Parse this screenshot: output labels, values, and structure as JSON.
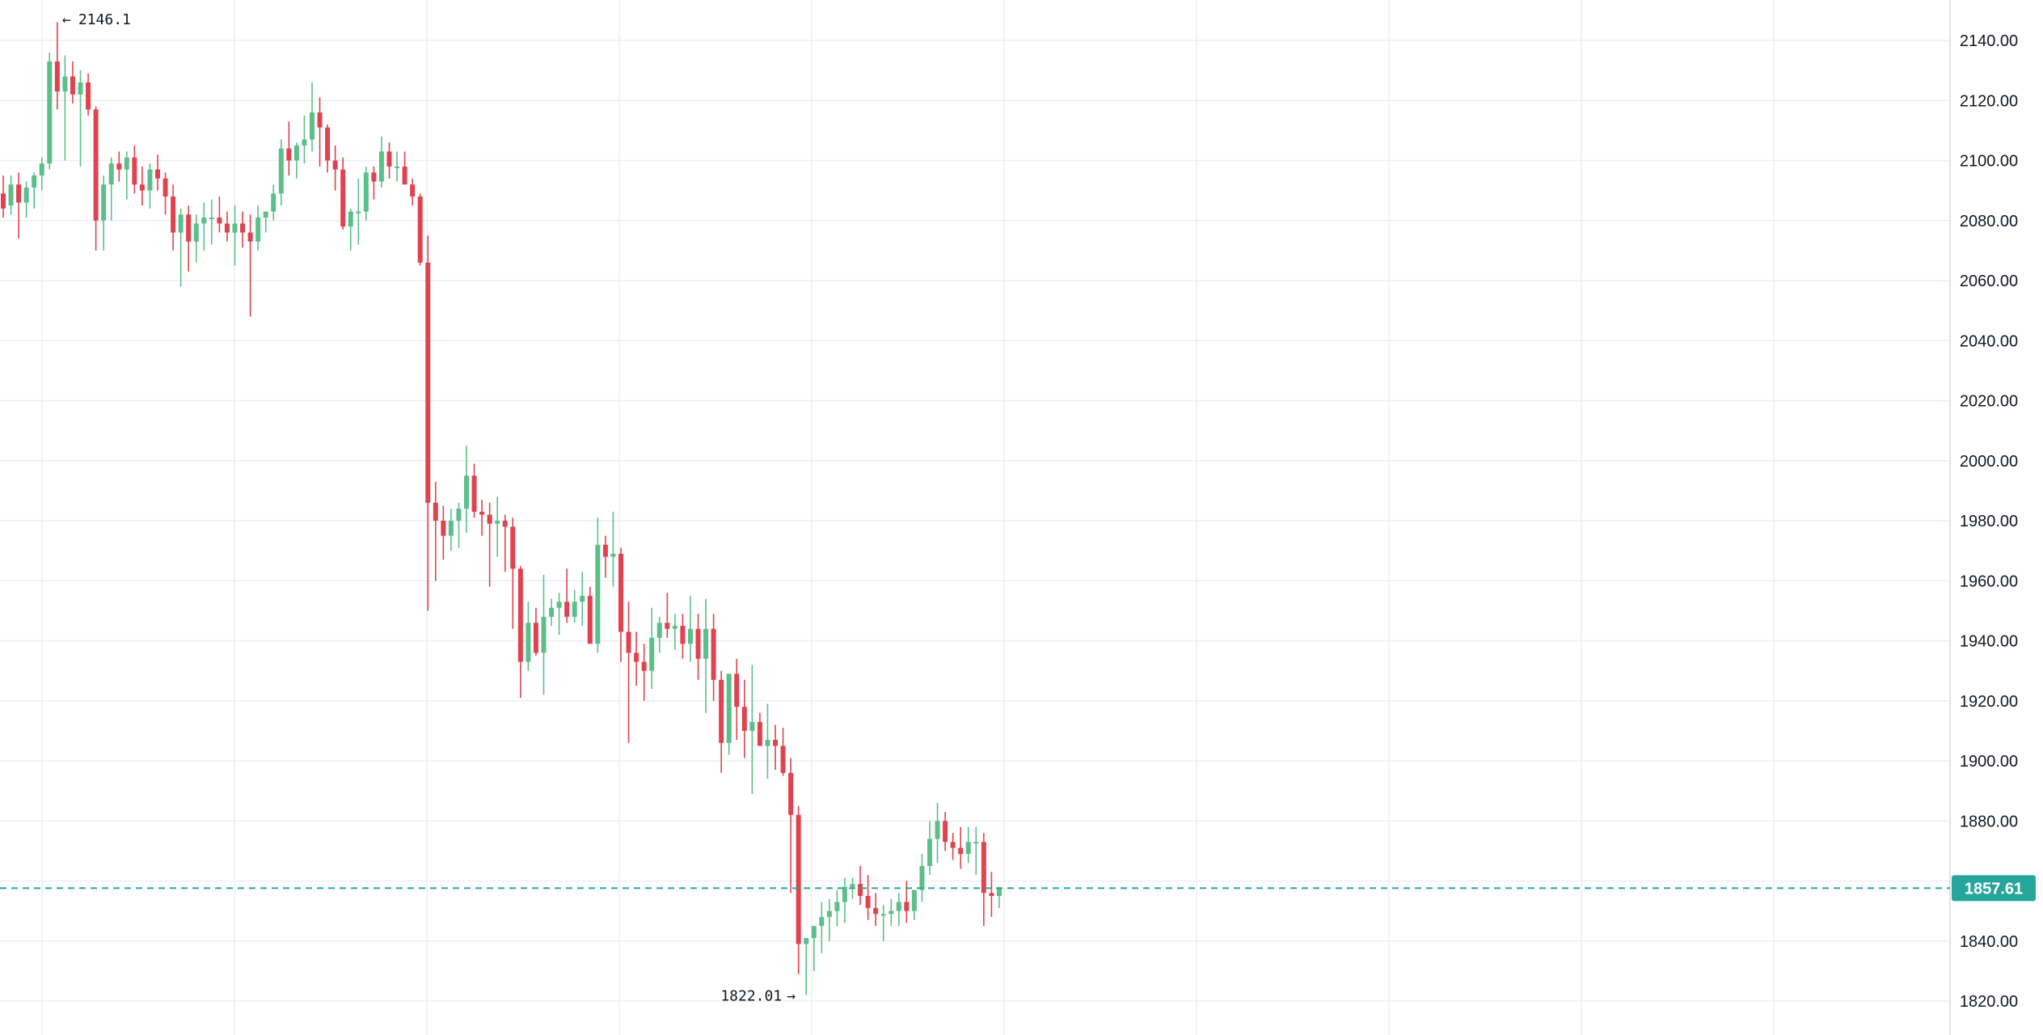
{
  "chart_data": {
    "type": "candlestick",
    "y_ticks": [
      "2140.00",
      "2120.00",
      "2100.00",
      "2080.00",
      "2060.00",
      "2040.00",
      "2020.00",
      "2000.00",
      "1980.00",
      "1960.00",
      "1940.00",
      "1920.00",
      "1900.00",
      "1880.00",
      "1860.00",
      "1840.00",
      "1820.00"
    ],
    "ylim": [
      1809,
      2153
    ],
    "grid": true,
    "last_price": 1857.61,
    "last_price_label": "1857.61",
    "high_label": "2146.1",
    "low_label": "1822.01",
    "colors": {
      "up": "#26a69a",
      "down": "#ef5350",
      "up_body": "#5cbf8a",
      "down_body": "#e0434f",
      "grid": "#eceff2",
      "axis_text": "#131722",
      "price_line": "#26a69a"
    },
    "candles": [
      [
        2089,
        2095,
        2081,
        2084
      ],
      [
        2085,
        2095,
        2082,
        2092
      ],
      [
        2092,
        2096,
        2074,
        2086
      ],
      [
        2086,
        2093,
        2081,
        2091
      ],
      [
        2091,
        2096,
        2084,
        2095
      ],
      [
        2095,
        2101,
        2090,
        2099
      ],
      [
        2099,
        2136,
        2097,
        2133
      ],
      [
        2133,
        2146.1,
        2117,
        2123
      ],
      [
        2123,
        2135,
        2100,
        2128
      ],
      [
        2128,
        2133,
        2119,
        2122
      ],
      [
        2122,
        2130,
        2098,
        2126
      ],
      [
        2126,
        2129,
        2115,
        2117
      ],
      [
        2117,
        2118,
        2070,
        2080
      ],
      [
        2080,
        2095,
        2070,
        2092
      ],
      [
        2092,
        2101,
        2080,
        2099
      ],
      [
        2099,
        2103,
        2093,
        2097
      ],
      [
        2097,
        2103,
        2087,
        2101
      ],
      [
        2101,
        2105,
        2089,
        2092
      ],
      [
        2092,
        2098,
        2085,
        2090
      ],
      [
        2090,
        2099,
        2084,
        2097
      ],
      [
        2097,
        2102,
        2090,
        2094
      ],
      [
        2094,
        2096,
        2082,
        2088
      ],
      [
        2088,
        2092,
        2070,
        2076
      ],
      [
        2076,
        2084,
        2058,
        2082
      ],
      [
        2082,
        2085,
        2063,
        2073
      ],
      [
        2073,
        2082,
        2066,
        2079
      ],
      [
        2079,
        2086,
        2070,
        2081
      ],
      [
        2081,
        2087,
        2072,
        2081
      ],
      [
        2081,
        2088,
        2076,
        2079
      ],
      [
        2079,
        2083,
        2073,
        2076
      ],
      [
        2076,
        2085,
        2065,
        2079
      ],
      [
        2079,
        2083,
        2071,
        2076
      ],
      [
        2076,
        2082,
        2048,
        2073
      ],
      [
        2073,
        2085,
        2070,
        2081
      ],
      [
        2081,
        2083,
        2076,
        2083
      ],
      [
        2083,
        2092,
        2080,
        2089
      ],
      [
        2089,
        2107,
        2085,
        2104
      ],
      [
        2104,
        2113,
        2095,
        2100
      ],
      [
        2100,
        2106,
        2094,
        2105
      ],
      [
        2105,
        2115,
        2099,
        2107
      ],
      [
        2107,
        2126,
        2103,
        2116
      ],
      [
        2116,
        2121,
        2098,
        2111
      ],
      [
        2111,
        2112,
        2096,
        2100
      ],
      [
        2100,
        2105,
        2090,
        2097
      ],
      [
        2097,
        2101,
        2077,
        2078
      ],
      [
        2078,
        2084,
        2070,
        2083
      ],
      [
        2083,
        2094,
        2072,
        2083
      ],
      [
        2083,
        2098,
        2080,
        2096
      ],
      [
        2096,
        2098,
        2087,
        2093
      ],
      [
        2093,
        2108,
        2091,
        2103
      ],
      [
        2103,
        2106,
        2094,
        2098
      ],
      [
        2098,
        2103,
        2093,
        2098
      ],
      [
        2098,
        2103,
        2092,
        2092
      ],
      [
        2092,
        2094,
        2085,
        2088
      ],
      [
        2088,
        2089,
        2065,
        2066
      ],
      [
        2066,
        2075,
        1950,
        1986
      ],
      [
        1986,
        1993,
        1960,
        1980
      ],
      [
        1980,
        1985,
        1967,
        1975
      ],
      [
        1975,
        1984,
        1970,
        1980
      ],
      [
        1980,
        1986,
        1971,
        1984
      ],
      [
        1984,
        2005,
        1976,
        1995
      ],
      [
        1995,
        1999,
        1981,
        1983
      ],
      [
        1983,
        1987,
        1975,
        1982
      ],
      [
        1982,
        1986,
        1958,
        1979
      ],
      [
        1979,
        1988,
        1968,
        1980
      ],
      [
        1980,
        1982,
        1963,
        1978
      ],
      [
        1978,
        1981,
        1944,
        1964
      ],
      [
        1964,
        1965,
        1921,
        1933
      ],
      [
        1933,
        1953,
        1930,
        1946
      ],
      [
        1946,
        1951,
        1935,
        1936
      ],
      [
        1936,
        1962,
        1922,
        1948
      ],
      [
        1948,
        1954,
        1945,
        1951
      ],
      [
        1951,
        1956,
        1942,
        1953
      ],
      [
        1953,
        1964,
        1946,
        1948
      ],
      [
        1948,
        1957,
        1946,
        1953
      ],
      [
        1953,
        1963,
        1945,
        1955
      ],
      [
        1955,
        1958,
        1940,
        1939
      ],
      [
        1939,
        1981,
        1936,
        1972
      ],
      [
        1972,
        1975,
        1961,
        1968
      ],
      [
        1968,
        1983,
        1958,
        1969
      ],
      [
        1969,
        1971,
        1933,
        1943
      ],
      [
        1943,
        1953,
        1906,
        1936
      ],
      [
        1936,
        1943,
        1925,
        1933
      ],
      [
        1933,
        1939,
        1920,
        1930
      ],
      [
        1930,
        1951,
        1924,
        1941
      ],
      [
        1941,
        1948,
        1936,
        1946
      ],
      [
        1946,
        1956,
        1941,
        1944
      ],
      [
        1944,
        1949,
        1937,
        1945
      ],
      [
        1945,
        1949,
        1934,
        1939
      ],
      [
        1939,
        1955,
        1933,
        1944
      ],
      [
        1944,
        1949,
        1927,
        1934
      ],
      [
        1934,
        1954,
        1916,
        1944
      ],
      [
        1944,
        1949,
        1920,
        1927
      ],
      [
        1927,
        1930,
        1896,
        1906
      ],
      [
        1906,
        1929,
        1902,
        1929
      ],
      [
        1929,
        1934,
        1907,
        1918
      ],
      [
        1918,
        1927,
        1901,
        1910
      ],
      [
        1910,
        1932,
        1889,
        1913
      ],
      [
        1913,
        1916,
        1905,
        1905
      ],
      [
        1905,
        1919,
        1894,
        1907
      ],
      [
        1907,
        1912,
        1897,
        1905
      ],
      [
        1905,
        1911,
        1895,
        1896
      ],
      [
        1896,
        1901,
        1856,
        1882
      ],
      [
        1882,
        1885,
        1829,
        1839
      ],
      [
        1839,
        1841,
        1822.01,
        1841
      ],
      [
        1841,
        1845,
        1830,
        1845
      ],
      [
        1845,
        1853,
        1836,
        1848
      ],
      [
        1848,
        1854,
        1840,
        1850
      ],
      [
        1850,
        1857,
        1845,
        1853
      ],
      [
        1853,
        1861,
        1846,
        1858
      ],
      [
        1858,
        1861,
        1854,
        1859
      ],
      [
        1859,
        1865,
        1852,
        1855
      ],
      [
        1855,
        1862,
        1847,
        1851
      ],
      [
        1851,
        1856,
        1845,
        1849
      ],
      [
        1849,
        1852,
        1840,
        1849
      ],
      [
        1849,
        1854,
        1845,
        1850
      ],
      [
        1850,
        1856,
        1845,
        1853
      ],
      [
        1853,
        1860,
        1846,
        1850
      ],
      [
        1850,
        1856,
        1847,
        1857
      ],
      [
        1857,
        1869,
        1853,
        1865
      ],
      [
        1865,
        1880,
        1862,
        1874
      ],
      [
        1874,
        1886,
        1866,
        1880
      ],
      [
        1880,
        1883,
        1870,
        1873
      ],
      [
        1873,
        1876,
        1867,
        1871
      ],
      [
        1871,
        1878,
        1864,
        1869
      ],
      [
        1869,
        1878,
        1866,
        1873
      ],
      [
        1873,
        1878,
        1862,
        1873
      ],
      [
        1873,
        1876,
        1845,
        1856
      ],
      [
        1856,
        1863,
        1848,
        1855
      ],
      [
        1855,
        1858,
        1851,
        1857.61
      ]
    ]
  }
}
